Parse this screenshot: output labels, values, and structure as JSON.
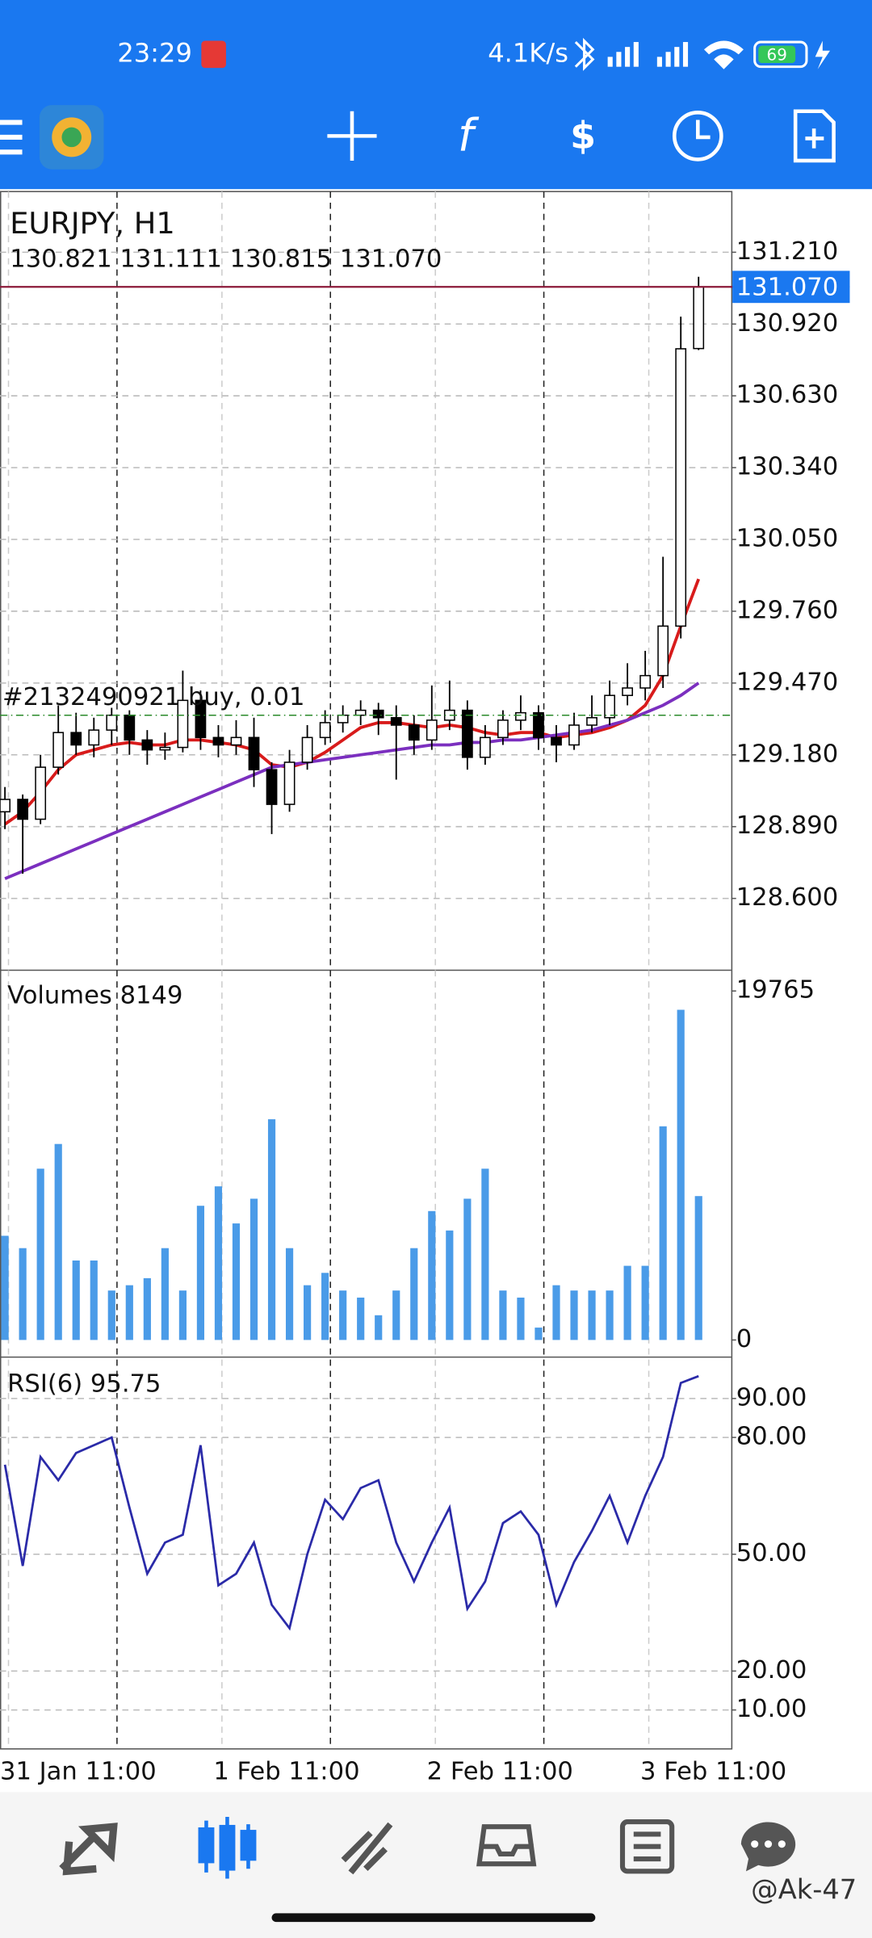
{
  "status_bar": {
    "time": "23:29",
    "net_speed": "4.1K/s",
    "battery": "69"
  },
  "chart_data": [
    {
      "type": "candlestick",
      "title": "EURJPY, H1",
      "quote_labels": [
        "130.821",
        "131.111",
        "130.815",
        "131.070"
      ],
      "categories": [
        "31 Jan 11:00",
        null,
        null,
        null,
        null,
        null,
        null,
        null,
        null,
        null,
        null,
        null,
        "1 Feb 11:00",
        null,
        null,
        null,
        null,
        null,
        null,
        null,
        null,
        null,
        null,
        null,
        "2 Feb 11:00",
        null,
        null,
        null,
        null,
        null,
        null,
        null,
        null,
        null,
        null,
        null,
        "3 Feb 11:00",
        null,
        null,
        null
      ],
      "ohlc": [
        [
          128.95,
          129.05,
          128.88,
          129.0
        ],
        [
          129.0,
          129.02,
          128.7,
          128.92
        ],
        [
          128.92,
          129.18,
          128.9,
          129.13
        ],
        [
          129.13,
          129.38,
          129.1,
          129.27
        ],
        [
          129.27,
          129.35,
          129.18,
          129.22
        ],
        [
          129.22,
          129.33,
          129.17,
          129.28
        ],
        [
          129.28,
          129.37,
          129.22,
          129.34
        ],
        [
          129.34,
          129.36,
          129.18,
          129.24
        ],
        [
          129.24,
          129.28,
          129.14,
          129.2
        ],
        [
          129.2,
          129.27,
          129.16,
          129.21
        ],
        [
          129.21,
          129.52,
          129.19,
          129.4
        ],
        [
          129.4,
          129.44,
          129.2,
          129.25
        ],
        [
          129.25,
          129.3,
          129.17,
          129.22
        ],
        [
          129.22,
          129.32,
          129.18,
          129.25
        ],
        [
          129.25,
          129.33,
          129.05,
          129.12
        ],
        [
          129.12,
          129.15,
          128.86,
          128.98
        ],
        [
          128.98,
          129.2,
          128.95,
          129.15
        ],
        [
          129.15,
          129.3,
          129.12,
          129.25
        ],
        [
          129.25,
          129.36,
          129.22,
          129.31
        ],
        [
          129.31,
          129.38,
          129.27,
          129.34
        ],
        [
          129.34,
          129.4,
          129.3,
          129.36
        ],
        [
          129.36,
          129.39,
          129.26,
          129.33
        ],
        [
          129.33,
          129.38,
          129.08,
          129.3
        ],
        [
          129.3,
          129.34,
          129.18,
          129.24
        ],
        [
          129.24,
          129.46,
          129.2,
          129.32
        ],
        [
          129.32,
          129.48,
          129.28,
          129.36
        ],
        [
          129.36,
          129.4,
          129.12,
          129.17
        ],
        [
          129.17,
          129.3,
          129.14,
          129.25
        ],
        [
          129.25,
          129.36,
          129.22,
          129.32
        ],
        [
          129.32,
          129.42,
          129.28,
          129.35
        ],
        [
          129.35,
          129.38,
          129.2,
          129.25
        ],
        [
          129.25,
          129.3,
          129.15,
          129.22
        ],
        [
          129.22,
          129.35,
          129.2,
          129.3
        ],
        [
          129.3,
          129.42,
          129.27,
          129.33
        ],
        [
          129.33,
          129.48,
          129.3,
          129.42
        ],
        [
          129.42,
          129.55,
          129.38,
          129.45
        ],
        [
          129.45,
          129.6,
          129.4,
          129.5
        ],
        [
          129.5,
          129.98,
          129.45,
          129.7
        ],
        [
          129.7,
          130.95,
          129.65,
          130.82
        ],
        [
          130.821,
          131.111,
          130.815,
          131.07
        ]
      ],
      "series": [
        {
          "color": "#d81b1b",
          "values": [
            128.9,
            128.95,
            129.03,
            129.12,
            129.18,
            129.2,
            129.22,
            129.23,
            129.22,
            129.22,
            129.24,
            129.24,
            129.23,
            129.22,
            129.2,
            129.14,
            129.13,
            129.15,
            129.19,
            129.24,
            129.29,
            129.31,
            129.31,
            129.3,
            129.29,
            129.3,
            129.29,
            129.27,
            129.26,
            129.27,
            129.27,
            129.25,
            129.26,
            129.27,
            129.29,
            129.32,
            129.38,
            129.5,
            129.7,
            129.89
          ]
        },
        {
          "color": "#7b2fbf",
          "values": [
            128.68,
            128.71,
            128.74,
            128.77,
            128.8,
            128.83,
            128.86,
            128.89,
            128.92,
            128.95,
            128.98,
            129.01,
            129.04,
            129.07,
            129.1,
            129.13,
            129.14,
            129.15,
            129.16,
            129.17,
            129.18,
            129.19,
            129.2,
            129.21,
            129.22,
            129.22,
            129.23,
            129.23,
            129.24,
            129.24,
            129.25,
            129.26,
            129.27,
            129.28,
            129.3,
            129.32,
            129.35,
            129.38,
            129.42,
            129.47
          ]
        }
      ],
      "ylim": [
        128.31,
        131.455
      ],
      "yticks": [
        {
          "value": 128.6,
          "label": "128.600"
        },
        {
          "value": 128.89,
          "label": "128.890"
        },
        {
          "value": 129.18,
          "label": "129.180"
        },
        {
          "value": 129.47,
          "label": "129.470"
        },
        {
          "value": 129.76,
          "label": "129.760"
        },
        {
          "value": 130.05,
          "label": "130.050"
        },
        {
          "value": 130.34,
          "label": "130.340"
        },
        {
          "value": 130.63,
          "label": "130.630"
        },
        {
          "value": 130.92,
          "label": "130.920"
        },
        {
          "value": 131.21,
          "label": "131.210"
        }
      ],
      "current_price": {
        "value": 131.07,
        "label": "131.070"
      },
      "trade": {
        "label": "#2132490921 buy, 0.01",
        "price": 129.34
      },
      "grid": true
    },
    {
      "type": "bar",
      "title": "Volumes",
      "color": "#4a9be8",
      "values": [
        5900,
        5200,
        9700,
        11100,
        4500,
        4500,
        2800,
        3100,
        3500,
        5200,
        2800,
        7600,
        8700,
        6600,
        8000,
        12500,
        5200,
        3100,
        3800,
        2800,
        2400,
        1400,
        2800,
        5200,
        7300,
        6200,
        8000,
        9700,
        2800,
        2400,
        700,
        3100,
        2800,
        2800,
        2800,
        4200,
        4200,
        12100,
        18700,
        8149
      ],
      "ylim": [
        -900,
        20800
      ],
      "yticks": [
        0,
        19765
      ]
    },
    {
      "type": "line",
      "title": "RSI(6)",
      "color": "#2a2aa8",
      "values": [
        73,
        47,
        75,
        69,
        76,
        78,
        80,
        62,
        45,
        53,
        55,
        78,
        42,
        45,
        53,
        37,
        31,
        50,
        64,
        59,
        67,
        69,
        53,
        43,
        53,
        62,
        36,
        43,
        58,
        61,
        55,
        37,
        48,
        56,
        65,
        53,
        65,
        75,
        94,
        95.75
      ],
      "ylim": [
        0,
        100
      ],
      "yticks": [
        {
          "value": 10,
          "label": "10.00"
        },
        {
          "value": 20,
          "label": "20.00"
        },
        {
          "value": 50,
          "label": "50.00"
        },
        {
          "value": 80,
          "label": "80.00"
        },
        {
          "value": 90,
          "label": "90.00"
        }
      ],
      "grid": true
    }
  ],
  "watermark": "@Ak-47"
}
